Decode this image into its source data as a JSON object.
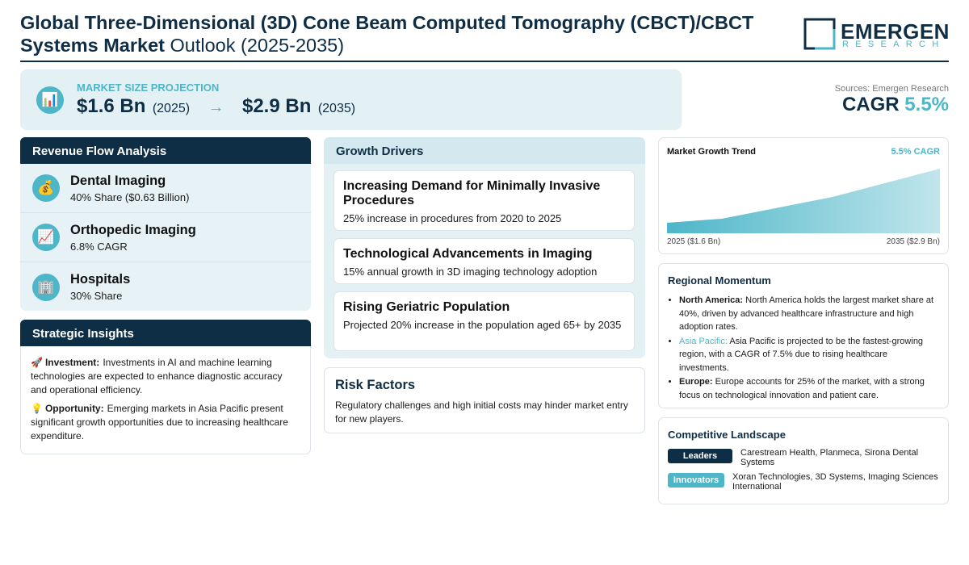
{
  "header": {
    "title_bold": "Global Three-Dimensional (3D) Cone Beam Computed Tomography (CBCT)/CBCT Systems Market",
    "title_rest": "Outlook (2025-2035)",
    "logo_name": "EMERGEN",
    "logo_sub": "RESEARCH"
  },
  "projection": {
    "icon": "📊",
    "label": "MARKET SIZE PROJECTION",
    "start_value": "$1.6 Bn",
    "start_year": "(2025)",
    "arrow": "→",
    "end_value": "$2.9 Bn",
    "end_year": "(2035)"
  },
  "summary": {
    "sources": "Sources: Emergen Research",
    "cagr_label": "CAGR",
    "cagr_value": "5.5%"
  },
  "revenue_flow": {
    "title": "Revenue Flow Analysis",
    "items": [
      {
        "icon": "💰",
        "name": "Dental Imaging",
        "detail": "40% Share ($0.63 Billion)"
      },
      {
        "icon": "📈",
        "name": "Orthopedic Imaging",
        "detail": "6.8% CAGR"
      },
      {
        "icon": "🏢",
        "name": "Hospitals",
        "detail": "30% Share"
      }
    ]
  },
  "strategic_insights": {
    "title": "Strategic Insights",
    "items": [
      {
        "icon": "🚀",
        "label": "Investment:",
        "text": "Investments in AI and machine learning technologies are expected to enhance diagnostic accuracy and operational efficiency."
      },
      {
        "icon": "💡",
        "label": "Opportunity:",
        "text": "Emerging markets in Asia Pacific present significant growth opportunities due to increasing healthcare expenditure."
      }
    ]
  },
  "growth_drivers": {
    "title": "Growth Drivers",
    "items": [
      {
        "title": "Increasing Demand for Minimally Invasive Procedures",
        "text": "25% increase in procedures from 2020 to 2025"
      },
      {
        "title": "Technological Advancements in Imaging",
        "text": "15% annual growth in 3D imaging technology adoption"
      },
      {
        "title": "Rising Geriatric Population",
        "text": "Projected 20% increase in the population aged 65+ by 2035"
      }
    ]
  },
  "risk_factors": {
    "title": "Risk Factors",
    "text": "Regulatory challenges and high initial costs may hinder market entry for new players."
  },
  "market_trend": {
    "title": "Market Growth Trend",
    "badge": "5.5% CAGR",
    "start_label": "2025 ($1.6 Bn)",
    "end_label": "2035 ($2.9 Bn)"
  },
  "regional_momentum": {
    "title": "Regional Momentum",
    "items": [
      {
        "region": "North America:",
        "text": "North America holds the largest market share at 40%, driven by advanced healthcare infrastructure and high adoption rates."
      },
      {
        "region": "Asia Pacific:",
        "text": "Asia Pacific is projected to be the fastest-growing region, with a CAGR of 7.5% due to rising healthcare investments."
      },
      {
        "region": "Europe:",
        "text": "Europe accounts for 25% of the market, with a strong focus on technological innovation and patient care."
      }
    ]
  },
  "competitive_landscape": {
    "title": "Competitive Landscape",
    "rows": [
      {
        "tag": "Leaders",
        "companies": "Carestream Health, Planmeca, Sirona Dental Systems"
      },
      {
        "tag": "Innovators",
        "companies": "Xoran Technologies, 3D Systems, Imaging Sciences International"
      }
    ]
  }
}
